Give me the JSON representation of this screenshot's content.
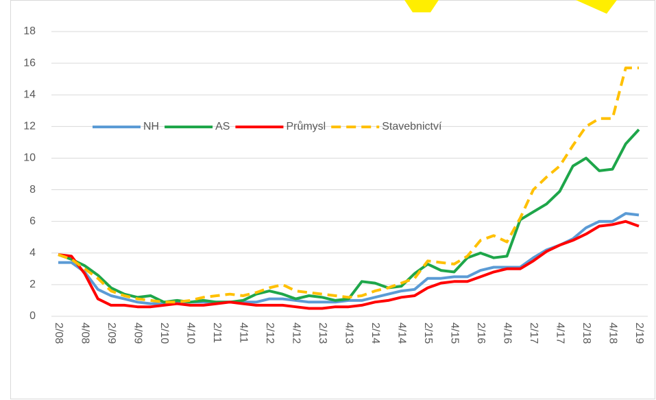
{
  "chart_data": {
    "type": "line",
    "categories": [
      "2/08",
      null,
      "4/08",
      null,
      "2/09",
      null,
      "4/09",
      null,
      "2/10",
      null,
      "4/10",
      null,
      "2/11",
      null,
      "4/11",
      null,
      "2/12",
      null,
      "4/12",
      null,
      "2/13",
      null,
      "4/13",
      null,
      "2/14",
      null,
      "4/14",
      null,
      "2/15",
      null,
      "4/15",
      null,
      "2/16",
      null,
      "4/16",
      null,
      "2/17",
      null,
      "4/17",
      null,
      "2/18",
      null,
      "4/18",
      null,
      "2/19"
    ],
    "series": [
      {
        "name": "NH",
        "color": "#5b9bd5",
        "dash": false,
        "values": [
          3.4,
          3.4,
          2.8,
          1.7,
          1.3,
          1.1,
          0.9,
          0.8,
          0.8,
          0.9,
          0.9,
          0.9,
          0.9,
          0.9,
          0.9,
          0.9,
          1.1,
          1.1,
          1.0,
          0.9,
          0.9,
          0.9,
          1.0,
          1.0,
          1.2,
          1.4,
          1.6,
          1.7,
          2.4,
          2.4,
          2.5,
          2.5,
          2.9,
          3.1,
          3.1,
          3.1,
          3.7,
          4.2,
          4.5,
          4.9,
          5.6,
          6.0,
          6.0,
          6.5,
          6.4
        ]
      },
      {
        "name": "AS",
        "color": "#1ea64a",
        "dash": false,
        "values": [
          3.9,
          3.6,
          3.2,
          2.6,
          1.8,
          1.4,
          1.2,
          1.3,
          0.9,
          1.0,
          0.9,
          1.0,
          0.9,
          0.9,
          1.0,
          1.4,
          1.6,
          1.4,
          1.1,
          1.3,
          1.2,
          1.0,
          1.1,
          2.2,
          2.1,
          1.8,
          1.9,
          2.7,
          3.3,
          2.9,
          2.8,
          3.7,
          4.0,
          3.7,
          3.8,
          6.1,
          6.6,
          7.1,
          7.9,
          9.5,
          10.0,
          9.2,
          9.3,
          10.9,
          11.8
        ]
      },
      {
        "name": "Průmysl",
        "color": "#ff0000",
        "dash": false,
        "values": [
          3.9,
          3.8,
          2.7,
          1.1,
          0.7,
          0.7,
          0.6,
          0.6,
          0.7,
          0.8,
          0.7,
          0.7,
          0.8,
          0.9,
          0.8,
          0.7,
          0.7,
          0.7,
          0.6,
          0.5,
          0.5,
          0.6,
          0.6,
          0.7,
          0.9,
          1.0,
          1.2,
          1.3,
          1.8,
          2.1,
          2.2,
          2.2,
          2.5,
          2.8,
          3.0,
          3.0,
          3.5,
          4.1,
          4.5,
          4.8,
          5.2,
          5.7,
          5.8,
          6.0,
          5.7
        ]
      },
      {
        "name": "Stavebnictví",
        "color": "#ffc000",
        "dash": true,
        "values": [
          3.9,
          3.6,
          3.0,
          2.4,
          1.6,
          1.3,
          1.1,
          1.0,
          0.9,
          0.9,
          1.0,
          1.2,
          1.3,
          1.4,
          1.3,
          1.5,
          1.8,
          2.0,
          1.6,
          1.5,
          1.4,
          1.3,
          1.2,
          1.3,
          1.6,
          1.8,
          2.1,
          2.4,
          3.5,
          3.4,
          3.3,
          3.8,
          4.8,
          5.1,
          4.7,
          6.2,
          8.0,
          8.8,
          9.5,
          10.8,
          12.0,
          12.5,
          12.5,
          15.7,
          15.7
        ]
      }
    ],
    "ylim": [
      0,
      18
    ],
    "yticks": [
      0,
      2,
      4,
      6,
      8,
      10,
      12,
      14,
      16,
      18
    ],
    "grid": true
  }
}
